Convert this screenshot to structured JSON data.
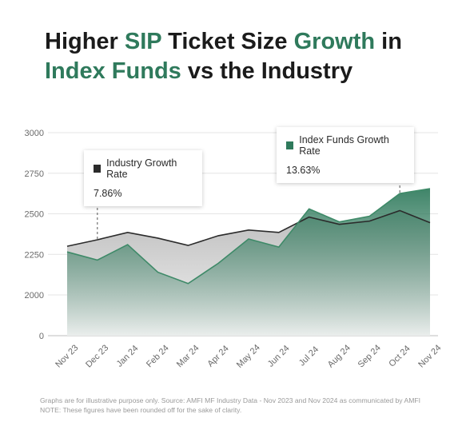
{
  "title": {
    "line1_a": "Higher ",
    "line1_b": "SIP",
    "line1_c": " Ticket Size ",
    "line1_d": "Growth",
    "line1_e": " in",
    "line2_a": "Index Funds",
    "line2_b": " vs the Industry"
  },
  "colors": {
    "industry": "#2b2b2b",
    "index_funds": "#2f7a5c",
    "accent": "#2f7a5c"
  },
  "callouts": {
    "industry": {
      "label": "Industry Growth Rate",
      "value": "7.86%"
    },
    "index_funds": {
      "label": "Index Funds Growth Rate",
      "value": "13.63%"
    }
  },
  "chart_data": {
    "type": "area",
    "categories": [
      "Nov 23",
      "Dec 23",
      "Jan 24",
      "Feb 24",
      "Mar 24",
      "Apr 24",
      "May 24",
      "Jun 24",
      "Jul 24",
      "Aug 24",
      "Sep 24",
      "Oct 24",
      "Nov 24"
    ],
    "series": [
      {
        "name": "Industry Growth Rate",
        "values": [
          2300,
          2340,
          2385,
          2350,
          2305,
          2365,
          2400,
          2385,
          2480,
          2435,
          2455,
          2520,
          2445
        ]
      },
      {
        "name": "Index Funds Growth Rate",
        "values": [
          2265,
          2215,
          2310,
          2140,
          2070,
          2195,
          2345,
          2295,
          2530,
          2450,
          2485,
          2625,
          2655
        ]
      }
    ],
    "ylim": [
      0,
      3000
    ],
    "yticks": [
      0,
      2000,
      2250,
      2500,
      2750,
      3000
    ],
    "ytick_labels": [
      "0",
      "2000",
      "2250",
      "2500",
      "2750",
      "3000"
    ],
    "grid": true
  },
  "footnote": {
    "line1": "Graphs are for illustrative purpose only. Source: AMFI MF Industry Data - Nov 2023 and Nov 2024 as communicated by AMFI",
    "line2": "NOTE: These figures have been rounded off for the sake of clarity."
  }
}
